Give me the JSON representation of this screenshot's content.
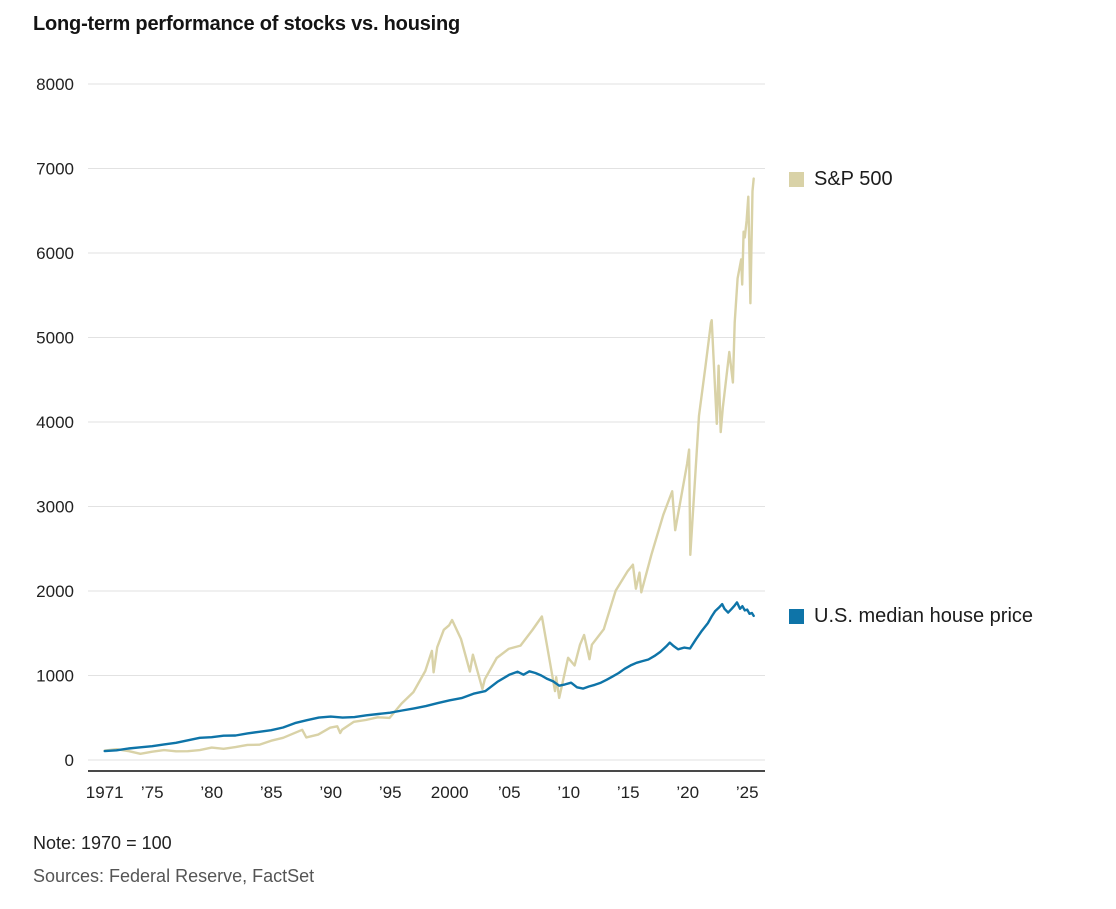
{
  "title": "Long-term performance of stocks vs. housing",
  "note": "Note: 1970 = 100",
  "sources": "Sources: Federal Reserve, FactSet",
  "legend": [
    {
      "label": "S&P 500",
      "color": "#d9d2a7"
    },
    {
      "label": "U.S. median house price",
      "color": "#0e74a8"
    }
  ],
  "chart_data": {
    "type": "line",
    "title": "Long-term performance of stocks vs. housing",
    "index_note": "1970 = 100",
    "xlabel": "",
    "ylabel": "",
    "ylim": [
      0,
      8000
    ],
    "grid": "horizontal",
    "legend_position": "right",
    "style": {
      "grid_color": "#e2e2e2",
      "axis_color": "#2f2f2f",
      "text_color": "#222222"
    },
    "yticks": [
      0,
      1000,
      2000,
      3000,
      4000,
      5000,
      6000,
      7000,
      8000
    ],
    "xticks": [
      {
        "year": 1971,
        "label": "1971"
      },
      {
        "year": 1975,
        "label": "’75"
      },
      {
        "year": 1980,
        "label": "’80"
      },
      {
        "year": 1985,
        "label": "’85"
      },
      {
        "year": 1990,
        "label": "’90"
      },
      {
        "year": 1995,
        "label": "’95"
      },
      {
        "year": 2000,
        "label": "2000"
      },
      {
        "year": 2005,
        "label": "’05"
      },
      {
        "year": 2010,
        "label": "’10"
      },
      {
        "year": 2015,
        "label": "’15"
      },
      {
        "year": 2020,
        "label": "’20"
      },
      {
        "year": 2025,
        "label": "’25"
      }
    ],
    "series": [
      {
        "id": "sp500",
        "name": "S&P 500",
        "color": "#d9d2a7",
        "points": [
          [
            1971,
            111
          ],
          [
            1972,
            128
          ],
          [
            1973,
            106
          ],
          [
            1974,
            74
          ],
          [
            1975,
            98
          ],
          [
            1976,
            117
          ],
          [
            1977,
            103
          ],
          [
            1978,
            104
          ],
          [
            1979,
            117
          ],
          [
            1980,
            147
          ],
          [
            1981,
            133
          ],
          [
            1982,
            153
          ],
          [
            1983,
            179
          ],
          [
            1984,
            181
          ],
          [
            1985,
            229
          ],
          [
            1986,
            263
          ],
          [
            1987.6,
            358
          ],
          [
            1987.95,
            268
          ],
          [
            1988.95,
            301
          ],
          [
            1989.95,
            383
          ],
          [
            1990.55,
            399
          ],
          [
            1990.8,
            320
          ],
          [
            1990.95,
            358
          ],
          [
            1991.95,
            452
          ],
          [
            1992.95,
            473
          ],
          [
            1993.95,
            506
          ],
          [
            1994.95,
            498
          ],
          [
            1995.95,
            668
          ],
          [
            1996.95,
            804
          ],
          [
            1997.95,
            1053
          ],
          [
            1998.5,
            1291
          ],
          [
            1998.65,
            1038
          ],
          [
            1998.95,
            1334
          ],
          [
            1999.5,
            1541
          ],
          [
            1999.95,
            1594
          ],
          [
            2000.2,
            1657
          ],
          [
            2000.95,
            1432
          ],
          [
            2001.7,
            1048
          ],
          [
            2001.95,
            1246
          ],
          [
            2002.75,
            842
          ],
          [
            2002.95,
            955
          ],
          [
            2003.95,
            1207
          ],
          [
            2004.95,
            1315
          ],
          [
            2005.95,
            1354
          ],
          [
            2006.95,
            1539
          ],
          [
            2007.75,
            1698
          ],
          [
            2008.85,
            816
          ],
          [
            2008.95,
            980
          ],
          [
            2009.2,
            735
          ],
          [
            2009.95,
            1210
          ],
          [
            2010.5,
            1118
          ],
          [
            2010.95,
            1365
          ],
          [
            2011.3,
            1480
          ],
          [
            2011.75,
            1193
          ],
          [
            2011.95,
            1365
          ],
          [
            2012.95,
            1548
          ],
          [
            2013.95,
            2005
          ],
          [
            2014.95,
            2234
          ],
          [
            2015.4,
            2311
          ],
          [
            2015.65,
            2027
          ],
          [
            2015.95,
            2218
          ],
          [
            2016.1,
            1985
          ],
          [
            2016.95,
            2430
          ],
          [
            2017.95,
            2902
          ],
          [
            2018.7,
            3180
          ],
          [
            2018.95,
            2720
          ],
          [
            2019.95,
            3506
          ],
          [
            2020.12,
            3674
          ],
          [
            2020.22,
            2428
          ],
          [
            2020.95,
            4076
          ],
          [
            2021.5,
            4662
          ],
          [
            2021.95,
            5171
          ],
          [
            2022.02,
            5205
          ],
          [
            2022.45,
            3979
          ],
          [
            2022.6,
            4666
          ],
          [
            2022.78,
            3881
          ],
          [
            2022.95,
            4167
          ],
          [
            2023.5,
            4828
          ],
          [
            2023.8,
            4467
          ],
          [
            2023.95,
            5176
          ],
          [
            2024.2,
            5701
          ],
          [
            2024.5,
            5924
          ],
          [
            2024.58,
            5627
          ],
          [
            2024.7,
            6252
          ],
          [
            2024.8,
            6185
          ],
          [
            2024.95,
            6382
          ],
          [
            2025.1,
            6666
          ],
          [
            2025.27,
            5406
          ],
          [
            2025.45,
            6732
          ],
          [
            2025.55,
            6880
          ]
        ]
      },
      {
        "id": "house",
        "name": "U.S. median house price",
        "color": "#0e74a8",
        "points": [
          [
            1971,
            105
          ],
          [
            1972,
            115
          ],
          [
            1973,
            136
          ],
          [
            1974,
            150
          ],
          [
            1975,
            164
          ],
          [
            1976,
            185
          ],
          [
            1977,
            204
          ],
          [
            1978,
            233
          ],
          [
            1979,
            263
          ],
          [
            1980,
            270
          ],
          [
            1981,
            288
          ],
          [
            1982,
            290
          ],
          [
            1983,
            315
          ],
          [
            1984,
            334
          ],
          [
            1985,
            353
          ],
          [
            1986,
            385
          ],
          [
            1987,
            437
          ],
          [
            1988,
            471
          ],
          [
            1989,
            502
          ],
          [
            1990,
            514
          ],
          [
            1991,
            502
          ],
          [
            1992,
            508
          ],
          [
            1993,
            529
          ],
          [
            1994,
            544
          ],
          [
            1995,
            560
          ],
          [
            1996,
            586
          ],
          [
            1997,
            611
          ],
          [
            1998,
            638
          ],
          [
            1999,
            674
          ],
          [
            2000,
            707
          ],
          [
            2001,
            733
          ],
          [
            2002,
            785
          ],
          [
            2003,
            816
          ],
          [
            2004,
            925
          ],
          [
            2005,
            1008
          ],
          [
            2005.7,
            1045
          ],
          [
            2006.2,
            1010
          ],
          [
            2006.7,
            1050
          ],
          [
            2007.2,
            1030
          ],
          [
            2007.7,
            1000
          ],
          [
            2008.2,
            960
          ],
          [
            2008.7,
            930
          ],
          [
            2009.2,
            880
          ],
          [
            2009.7,
            895
          ],
          [
            2010.2,
            915
          ],
          [
            2010.7,
            860
          ],
          [
            2011.2,
            845
          ],
          [
            2011.7,
            870
          ],
          [
            2012.2,
            890
          ],
          [
            2012.7,
            915
          ],
          [
            2013.2,
            950
          ],
          [
            2013.7,
            990
          ],
          [
            2014.2,
            1030
          ],
          [
            2014.7,
            1080
          ],
          [
            2015.2,
            1120
          ],
          [
            2015.7,
            1150
          ],
          [
            2016.2,
            1170
          ],
          [
            2016.7,
            1190
          ],
          [
            2017.2,
            1230
          ],
          [
            2017.7,
            1280
          ],
          [
            2018.2,
            1345
          ],
          [
            2018.5,
            1390
          ],
          [
            2018.8,
            1350
          ],
          [
            2019.2,
            1310
          ],
          [
            2019.7,
            1330
          ],
          [
            2020.2,
            1320
          ],
          [
            2020.7,
            1430
          ],
          [
            2021.2,
            1530
          ],
          [
            2021.7,
            1620
          ],
          [
            2022.02,
            1700
          ],
          [
            2022.3,
            1760
          ],
          [
            2022.6,
            1800
          ],
          [
            2022.9,
            1845
          ],
          [
            2023.1,
            1790
          ],
          [
            2023.4,
            1745
          ],
          [
            2023.7,
            1790
          ],
          [
            2023.95,
            1830
          ],
          [
            2024.15,
            1865
          ],
          [
            2024.4,
            1790
          ],
          [
            2024.6,
            1820
          ],
          [
            2024.8,
            1770
          ],
          [
            2025.0,
            1780
          ],
          [
            2025.2,
            1730
          ],
          [
            2025.4,
            1740
          ],
          [
            2025.55,
            1705
          ]
        ]
      }
    ]
  }
}
